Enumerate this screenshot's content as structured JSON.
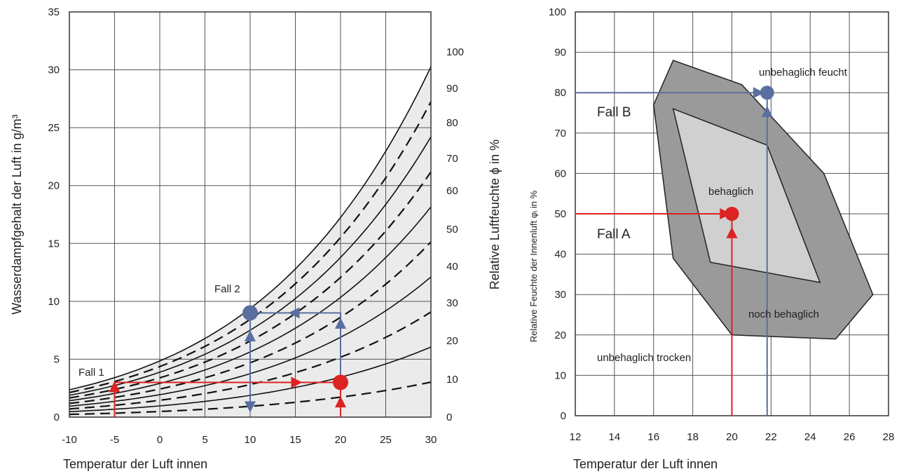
{
  "chart_data": [
    {
      "type": "line",
      "xlabel": "Temperatur  der Luft innen",
      "ylabel": "Wasserdampfgehalt der Luft in g/m³",
      "y2label": "Relative Luftfeuchte ϕ in %",
      "xlim": [
        -10,
        30
      ],
      "ylim": [
        0,
        35
      ],
      "x_ticks": [
        "-10",
        "-5",
        "0",
        "5",
        "10",
        "15",
        "20",
        "25",
        "30"
      ],
      "y_ticks": [
        "0",
        "5",
        "10",
        "15",
        "20",
        "25",
        "30",
        "35"
      ],
      "rh_labels": [
        "0",
        "10",
        "20",
        "30",
        "40",
        "50",
        "60",
        "70",
        "80",
        "90",
        "100"
      ],
      "grid": true,
      "shaded_area": "between 0% and 100% relative humidity",
      "series": [
        {
          "rh": 100,
          "style": "solid"
        },
        {
          "rh": 90,
          "style": "dashed"
        },
        {
          "rh": 80,
          "style": "solid"
        },
        {
          "rh": 70,
          "style": "dashed"
        },
        {
          "rh": 60,
          "style": "solid"
        },
        {
          "rh": 50,
          "style": "dashed"
        },
        {
          "rh": 40,
          "style": "solid"
        },
        {
          "rh": 30,
          "style": "dashed"
        },
        {
          "rh": 20,
          "style": "solid"
        },
        {
          "rh": 10,
          "style": "dashed"
        }
      ],
      "annotations": {
        "fall1": {
          "label": "Fall 1",
          "start": [
            -5,
            3.0
          ],
          "end": [
            20,
            3.0
          ],
          "color": "#dd2222"
        },
        "fall2": {
          "label": "Fall 2",
          "start": [
            20,
            3.0
          ],
          "end": [
            10,
            9.0
          ],
          "color": "#5a6fa0"
        }
      },
      "points": [
        {
          "x": 10,
          "y": 9.0,
          "color": "#5a6fa0"
        },
        {
          "x": 20,
          "y": 3.0,
          "color": "#dd2222"
        }
      ]
    },
    {
      "type": "area",
      "xlabel": "Temperatur  der Luft innen",
      "ylabel": "Relative Feuchte der Innenluft φᵢ in %",
      "xlim": [
        12,
        28
      ],
      "ylim": [
        0,
        100
      ],
      "x_ticks": [
        "12",
        "14",
        "16",
        "18",
        "20",
        "22",
        "24",
        "26",
        "28"
      ],
      "y_ticks": [
        "0",
        "10",
        "20",
        "30",
        "40",
        "50",
        "60",
        "70",
        "80",
        "90",
        "100"
      ],
      "grid": true,
      "outer_region": [
        [
          17.0,
          88.0
        ],
        [
          20.5,
          82.0
        ],
        [
          24.7,
          60.0
        ],
        [
          27.2,
          30.0
        ],
        [
          25.3,
          19.0
        ],
        [
          20.0,
          20.0
        ],
        [
          17.0,
          39.0
        ],
        [
          16.0,
          77.0
        ]
      ],
      "inner_region": [
        [
          17.0,
          76.0
        ],
        [
          21.8,
          67.0
        ],
        [
          24.5,
          33.0
        ],
        [
          18.9,
          38.0
        ]
      ],
      "zones": [
        "unbehaglich feucht",
        "behaglich",
        "noch behaglich",
        "unbehaglich trocken"
      ],
      "cases": [
        {
          "label": "Fall A",
          "x": 20,
          "y": 50,
          "color": "#dd2222"
        },
        {
          "label": "Fall B",
          "x": 21.8,
          "y": 80,
          "color": "#5a6fa0"
        }
      ]
    }
  ]
}
